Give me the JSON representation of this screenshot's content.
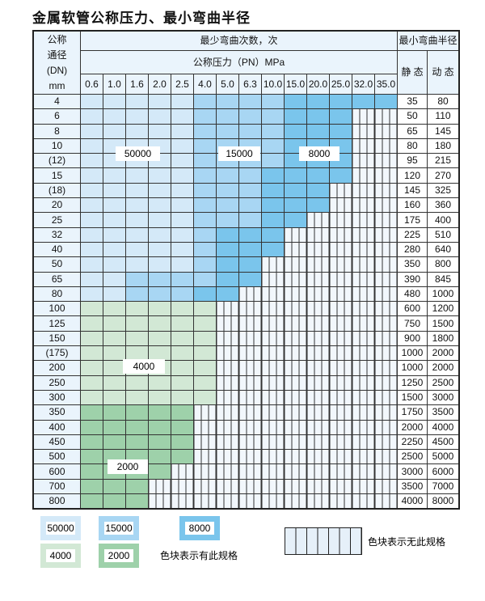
{
  "title": "金属软管公称压力、最小弯曲半径",
  "header": {
    "dn_label": [
      "公称",
      "通径",
      "(DN)",
      "mm"
    ],
    "cycles_label": "最少弯曲次数，次",
    "pressure_label": "公称压力（PN）MPa",
    "radius_label": "最小弯曲半径",
    "static_label": "静 态",
    "dynamic_label": "动 态",
    "pressures": [
      "0.6",
      "1.0",
      "1.6",
      "2.0",
      "2.5",
      "4.0",
      "5.0",
      "6.3",
      "10.0",
      "15.0",
      "20.0",
      "25.0",
      "32.0",
      "35.0"
    ]
  },
  "colors": {
    "50000": "#d4e9f8",
    "15000": "#a8d6f3",
    "8000": "#7ac5ec",
    "4000": "#d2e8d5",
    "2000": "#9ed1aa",
    "unavailable": "#f2f7fc"
  },
  "rows": [
    {
      "dn": "4",
      "static": "35",
      "dynamic": "80",
      "tiers": [
        "50000",
        5,
        "15000",
        4,
        "8000",
        5
      ]
    },
    {
      "dn": "6",
      "static": "50",
      "dynamic": "110",
      "tiers": [
        "50000",
        5,
        "15000",
        4,
        "8000",
        3
      ]
    },
    {
      "dn": "8",
      "static": "65",
      "dynamic": "145",
      "tiers": [
        "50000",
        5,
        "15000",
        4,
        "8000",
        3
      ]
    },
    {
      "dn": "10",
      "static": "80",
      "dynamic": "180",
      "tiers": [
        "50000",
        5,
        "15000",
        4,
        "8000",
        3
      ]
    },
    {
      "dn": "(12)",
      "static": "95",
      "dynamic": "215",
      "tiers": [
        "50000",
        5,
        "15000",
        4,
        "8000",
        3
      ]
    },
    {
      "dn": "15",
      "static": "120",
      "dynamic": "270",
      "tiers": [
        "50000",
        5,
        "15000",
        3,
        "8000",
        4
      ]
    },
    {
      "dn": "(18)",
      "static": "145",
      "dynamic": "325",
      "tiers": [
        "50000",
        5,
        "15000",
        3,
        "8000",
        3
      ]
    },
    {
      "dn": "20",
      "static": "160",
      "dynamic": "360",
      "tiers": [
        "50000",
        5,
        "15000",
        3,
        "8000",
        3
      ]
    },
    {
      "dn": "25",
      "static": "175",
      "dynamic": "400",
      "tiers": [
        "50000",
        5,
        "15000",
        3,
        "8000",
        2
      ]
    },
    {
      "dn": "32",
      "static": "225",
      "dynamic": "510",
      "tiers": [
        "50000",
        5,
        "15000",
        1,
        "8000",
        3
      ]
    },
    {
      "dn": "40",
      "static": "280",
      "dynamic": "640",
      "tiers": [
        "50000",
        5,
        "15000",
        1,
        "8000",
        3
      ]
    },
    {
      "dn": "50",
      "static": "350",
      "dynamic": "800",
      "tiers": [
        "50000",
        5,
        "15000",
        1,
        "8000",
        2
      ]
    },
    {
      "dn": "65",
      "static": "390",
      "dynamic": "845",
      "tiers": [
        "50000",
        2,
        "15000",
        4,
        "8000",
        2
      ]
    },
    {
      "dn": "80",
      "static": "480",
      "dynamic": "1000",
      "tiers": [
        "50000",
        2,
        "15000",
        3,
        "8000",
        2
      ]
    },
    {
      "dn": "100",
      "static": "600",
      "dynamic": "1200",
      "tiers": [
        "4000",
        6
      ]
    },
    {
      "dn": "125",
      "static": "750",
      "dynamic": "1500",
      "tiers": [
        "4000",
        6
      ]
    },
    {
      "dn": "150",
      "static": "900",
      "dynamic": "1800",
      "tiers": [
        "4000",
        6
      ]
    },
    {
      "dn": "(175)",
      "static": "1000",
      "dynamic": "2000",
      "tiers": [
        "4000",
        6
      ]
    },
    {
      "dn": "200",
      "static": "1000",
      "dynamic": "2000",
      "tiers": [
        "4000",
        6
      ]
    },
    {
      "dn": "250",
      "static": "1250",
      "dynamic": "2500",
      "tiers": [
        "4000",
        6
      ]
    },
    {
      "dn": "300",
      "static": "1500",
      "dynamic": "3000",
      "tiers": [
        "4000",
        6
      ]
    },
    {
      "dn": "350",
      "static": "1750",
      "dynamic": "3500",
      "tiers": [
        "2000",
        5
      ]
    },
    {
      "dn": "400",
      "static": "2000",
      "dynamic": "4000",
      "tiers": [
        "2000",
        5
      ]
    },
    {
      "dn": "450",
      "static": "2250",
      "dynamic": "4500",
      "tiers": [
        "2000",
        5
      ]
    },
    {
      "dn": "500",
      "static": "2500",
      "dynamic": "5000",
      "tiers": [
        "2000",
        5
      ]
    },
    {
      "dn": "600",
      "static": "3000",
      "dynamic": "6000",
      "tiers": [
        "2000",
        4
      ]
    },
    {
      "dn": "700",
      "static": "3500",
      "dynamic": "7000",
      "tiers": [
        "2000",
        3
      ]
    },
    {
      "dn": "800",
      "static": "4000",
      "dynamic": "8000",
      "tiers": [
        "2000",
        3
      ]
    }
  ],
  "region_labels": {
    "r50000": "50000",
    "r15000": "15000",
    "r8000": "8000",
    "r4000": "4000",
    "r2000": "2000"
  },
  "legend": {
    "items": [
      "50000",
      "15000",
      "8000",
      "4000",
      "2000"
    ],
    "available_text": "色块表示有此规格",
    "unavailable_text": "色块表示无此规格"
  }
}
